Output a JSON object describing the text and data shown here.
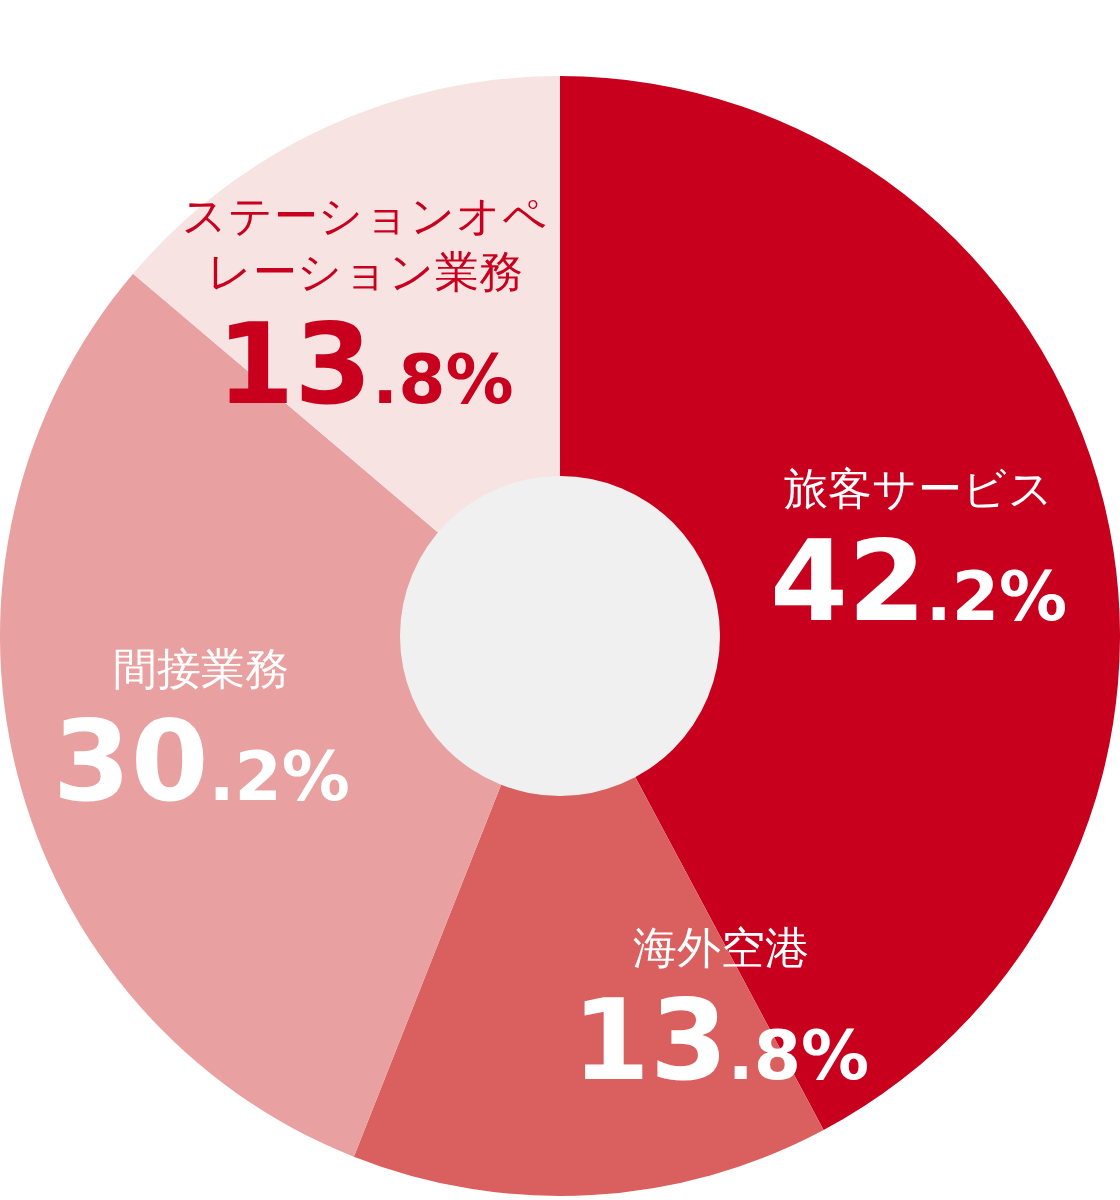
{
  "chart_data": {
    "type": "donut",
    "categories": [
      "旅客サービス",
      "海外空港",
      "間接業務",
      "ステーションオペレーション業務"
    ],
    "values": [
      42.2,
      13.8,
      30.2,
      13.8
    ],
    "value_labels": [
      "42.2%",
      "13.8%",
      "30.2%",
      "13.8%"
    ],
    "colors": [
      "#c8001e",
      "#d9605e",
      "#e8a0a0",
      "#f8e3e3"
    ]
  }
}
